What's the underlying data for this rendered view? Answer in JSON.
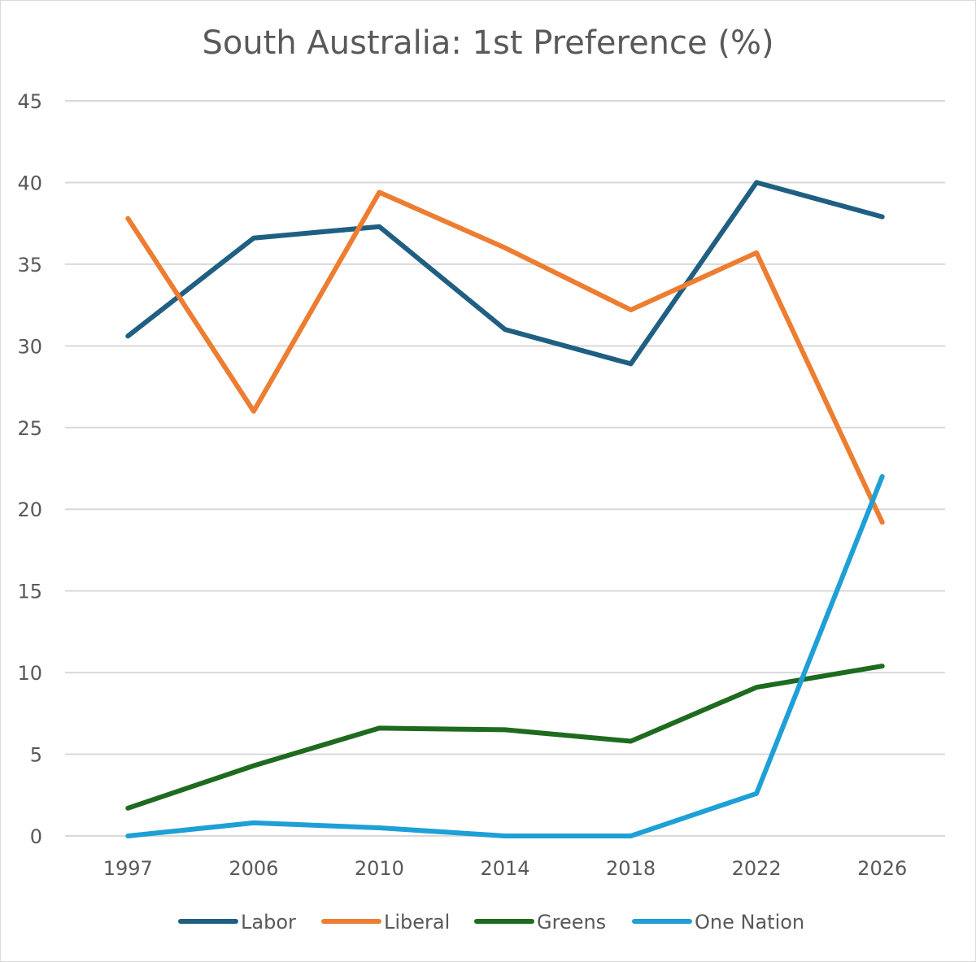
{
  "chart_data": {
    "type": "line",
    "title": "South Australia: 1st Preference (%)",
    "xlabel": "",
    "ylabel": "",
    "categories": [
      "1997",
      "2006",
      "2010",
      "2014",
      "2018",
      "2022",
      "2026"
    ],
    "ylim": [
      0,
      45
    ],
    "yticks": [
      "0",
      "5",
      "10",
      "15",
      "20",
      "25",
      "30",
      "35",
      "40",
      "45"
    ],
    "grid": true,
    "legend_position": "bottom",
    "series": [
      {
        "name": "Labor",
        "color": "#1f5f82",
        "values": [
          30.6,
          36.6,
          37.3,
          31.0,
          28.9,
          40.0,
          37.9
        ]
      },
      {
        "name": "Liberal",
        "color": "#ed7d31",
        "values": [
          37.8,
          26.0,
          39.4,
          36.0,
          32.2,
          35.7,
          19.2
        ]
      },
      {
        "name": "Greens",
        "color": "#1e6b1f",
        "values": [
          1.7,
          4.3,
          6.6,
          6.5,
          5.8,
          9.1,
          10.4
        ]
      },
      {
        "name": "One Nation",
        "color": "#1ea0d6",
        "values": [
          0.0,
          0.8,
          0.5,
          0.0,
          0.0,
          2.6,
          22.0
        ]
      }
    ]
  }
}
